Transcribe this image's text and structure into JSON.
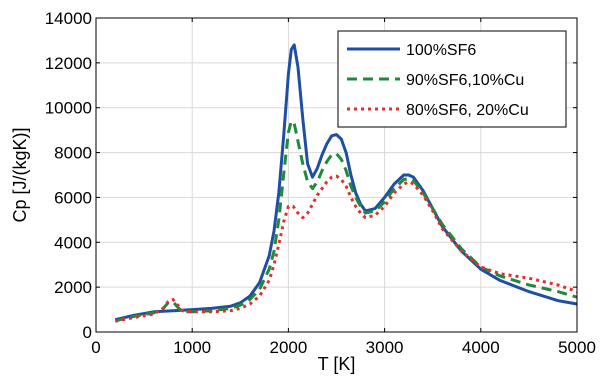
{
  "chart_data": {
    "type": "line",
    "title": "",
    "xlabel": "T [K]",
    "ylabel": "Cp [J/(kgK)]",
    "xlim": [
      0,
      5000
    ],
    "ylim": [
      0,
      14000
    ],
    "x_ticks": [
      0,
      1000,
      2000,
      3000,
      4000,
      5000
    ],
    "y_ticks": [
      0,
      2000,
      4000,
      6000,
      8000,
      10000,
      12000,
      14000
    ],
    "grid": true,
    "legend_position": "top-right",
    "series": [
      {
        "name": "100%SF6",
        "color": "#1f4fa3",
        "style": "solid",
        "x": [
          200,
          400,
          600,
          800,
          1000,
          1200,
          1400,
          1500,
          1600,
          1700,
          1800,
          1850,
          1900,
          1950,
          2000,
          2030,
          2060,
          2100,
          2150,
          2200,
          2250,
          2300,
          2350,
          2400,
          2450,
          2500,
          2550,
          2600,
          2650,
          2700,
          2750,
          2800,
          2900,
          3000,
          3100,
          3200,
          3250,
          3300,
          3400,
          3500,
          3600,
          3800,
          4000,
          4200,
          4500,
          4800,
          5000
        ],
        "y": [
          550,
          750,
          900,
          950,
          1000,
          1050,
          1150,
          1300,
          1600,
          2200,
          3400,
          4500,
          6200,
          8700,
          11500,
          12600,
          12800,
          11800,
          9500,
          7500,
          6900,
          7300,
          7900,
          8400,
          8750,
          8800,
          8600,
          8000,
          7000,
          6200,
          5700,
          5400,
          5500,
          6000,
          6600,
          7000,
          7000,
          6900,
          6300,
          5500,
          4700,
          3600,
          2800,
          2300,
          1800,
          1400,
          1250
        ]
      },
      {
        "name": "90%SF6,10%Cu",
        "color": "#1f8a3a",
        "style": "dashed",
        "x": [
          200,
          400,
          600,
          700,
          750,
          800,
          850,
          900,
          1000,
          1200,
          1400,
          1500,
          1600,
          1700,
          1800,
          1850,
          1900,
          1950,
          2000,
          2030,
          2060,
          2100,
          2150,
          2200,
          2250,
          2300,
          2350,
          2400,
          2450,
          2500,
          2550,
          2600,
          2650,
          2700,
          2750,
          2800,
          2900,
          3000,
          3100,
          3200,
          3250,
          3300,
          3400,
          3500,
          3600,
          3800,
          4000,
          4200,
          4500,
          4800,
          5000
        ],
        "y": [
          500,
          700,
          850,
          1050,
          1300,
          1350,
          1100,
          900,
          900,
          950,
          1050,
          1200,
          1450,
          1900,
          2800,
          3600,
          5000,
          7000,
          8900,
          9400,
          9300,
          8500,
          7500,
          6700,
          6400,
          6700,
          7200,
          7600,
          7900,
          7950,
          7700,
          7200,
          6500,
          6000,
          5600,
          5300,
          5400,
          5800,
          6400,
          6800,
          6850,
          6750,
          6200,
          5500,
          4800,
          3700,
          2900,
          2500,
          2100,
          1800,
          1550
        ]
      },
      {
        "name": "80%SF6, 20%Cu",
        "color": "#e0302c",
        "style": "dotted",
        "x": [
          200,
          400,
          600,
          700,
          750,
          800,
          850,
          900,
          1000,
          1200,
          1400,
          1500,
          1600,
          1700,
          1800,
          1850,
          1900,
          1950,
          2000,
          2050,
          2100,
          2150,
          2200,
          2250,
          2300,
          2350,
          2400,
          2450,
          2500,
          2550,
          2600,
          2650,
          2700,
          2750,
          2800,
          2900,
          3000,
          3100,
          3200,
          3250,
          3300,
          3400,
          3500,
          3600,
          3800,
          4000,
          4200,
          4500,
          4800,
          5000
        ],
        "y": [
          480,
          650,
          800,
          1050,
          1350,
          1450,
          1200,
          950,
          900,
          900,
          950,
          1050,
          1250,
          1600,
          2300,
          3000,
          3900,
          4900,
          5600,
          5600,
          5300,
          5100,
          5300,
          5700,
          6100,
          6400,
          6700,
          6900,
          6950,
          6800,
          6500,
          6000,
          5600,
          5300,
          5100,
          5200,
          5600,
          6200,
          6600,
          6700,
          6600,
          6100,
          5400,
          4600,
          3600,
          2900,
          2600,
          2400,
          2100,
          1800
        ]
      }
    ]
  }
}
